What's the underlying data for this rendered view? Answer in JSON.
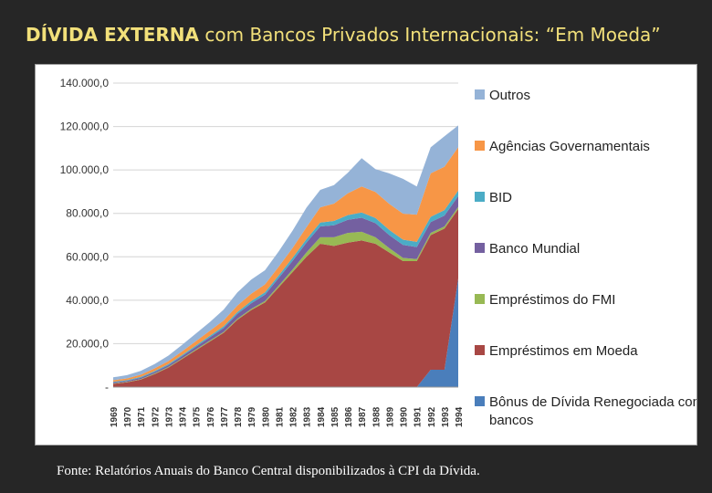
{
  "title": {
    "strong": "DÍVIDA EXTERNA",
    "rest": " com Bancos Privados Internacionais: “Em Moeda”"
  },
  "source": "Fonte: Relatórios Anuais do Banco Central disponibilizados à CPI da Dívida.",
  "chart_data": {
    "type": "area",
    "stacked": true,
    "title": "DÍVIDA EXTERNA com Bancos Privados Internacionais: “Em Moeda”",
    "xlabel": "",
    "ylabel": "",
    "ylim": [
      0,
      140000
    ],
    "yticks": [
      0,
      20000,
      40000,
      60000,
      80000,
      100000,
      120000,
      140000
    ],
    "ytick_labels": [
      "-",
      "20.000,0",
      "40.000,0",
      "60.000,0",
      "80.000,0",
      "100.000,0",
      "120.000,0",
      "140.000,0"
    ],
    "grid": true,
    "legend_position": "right",
    "categories": [
      "1969",
      "1970",
      "1971",
      "1972",
      "1973",
      "1974",
      "1975",
      "1976",
      "1977",
      "1978",
      "1979",
      "1980",
      "1981",
      "1982",
      "1983",
      "1984",
      "1985",
      "1986",
      "1987",
      "1988",
      "1989",
      "1990",
      "1991",
      "1992",
      "1993",
      "1994"
    ],
    "series": [
      {
        "name": "Bônus de Dívida Renegociada com bancos",
        "color": "#4a7ebb",
        "values": [
          0,
          0,
          0,
          0,
          0,
          0,
          0,
          0,
          0,
          0,
          0,
          0,
          0,
          0,
          0,
          0,
          0,
          0,
          0,
          0,
          0,
          0,
          0,
          8000,
          8000,
          50000
        ]
      },
      {
        "name": "Empréstimos em Moeda",
        "color": "#a84744",
        "values": [
          1500,
          2200,
          3500,
          6000,
          9000,
          13000,
          17000,
          21000,
          25000,
          31000,
          35500,
          39000,
          46000,
          53000,
          60000,
          66000,
          65000,
          66500,
          67500,
          66000,
          62000,
          58000,
          58000,
          62000,
          65000,
          32000
        ]
      },
      {
        "name": "Empréstimos do FMI",
        "color": "#98b954",
        "values": [
          200,
          200,
          200,
          300,
          300,
          300,
          400,
          400,
          400,
          500,
          500,
          600,
          800,
          1200,
          2000,
          3000,
          4000,
          4500,
          4000,
          3000,
          2000,
          1500,
          1000,
          1000,
          1000,
          1000
        ]
      },
      {
        "name": "Banco Mundial",
        "color": "#7460a0",
        "values": [
          500,
          500,
          600,
          700,
          800,
          1000,
          1200,
          1500,
          1800,
          2200,
          2600,
          3000,
          3500,
          4000,
          4500,
          5000,
          5500,
          6000,
          6500,
          6500,
          6000,
          6000,
          5500,
          5000,
          5000,
          5000
        ]
      },
      {
        "name": "BID",
        "color": "#4bacc6",
        "values": [
          300,
          300,
          400,
          400,
          500,
          500,
          600,
          700,
          800,
          900,
          1000,
          1100,
          1200,
          1400,
          1600,
          1800,
          2000,
          2200,
          2400,
          2400,
          2400,
          2400,
          2400,
          2400,
          2500,
          2500
        ]
      },
      {
        "name": "Agências Governamentais",
        "color": "#f79646",
        "values": [
          700,
          800,
          1000,
          1200,
          1400,
          1700,
          2000,
          2300,
          2700,
          3000,
          3400,
          3600,
          4000,
          4500,
          5500,
          7000,
          8000,
          10000,
          12000,
          12000,
          12000,
          12000,
          12500,
          20000,
          20000,
          20000
        ]
      },
      {
        "name": "Outros",
        "color": "#95b3d7",
        "values": [
          1300,
          1500,
          1800,
          2000,
          2500,
          3000,
          3500,
          4000,
          5000,
          6000,
          6500,
          6500,
          7000,
          8000,
          9000,
          8000,
          8500,
          9500,
          13000,
          10500,
          14000,
          16000,
          13000,
          12000,
          14000,
          10000
        ]
      }
    ]
  }
}
